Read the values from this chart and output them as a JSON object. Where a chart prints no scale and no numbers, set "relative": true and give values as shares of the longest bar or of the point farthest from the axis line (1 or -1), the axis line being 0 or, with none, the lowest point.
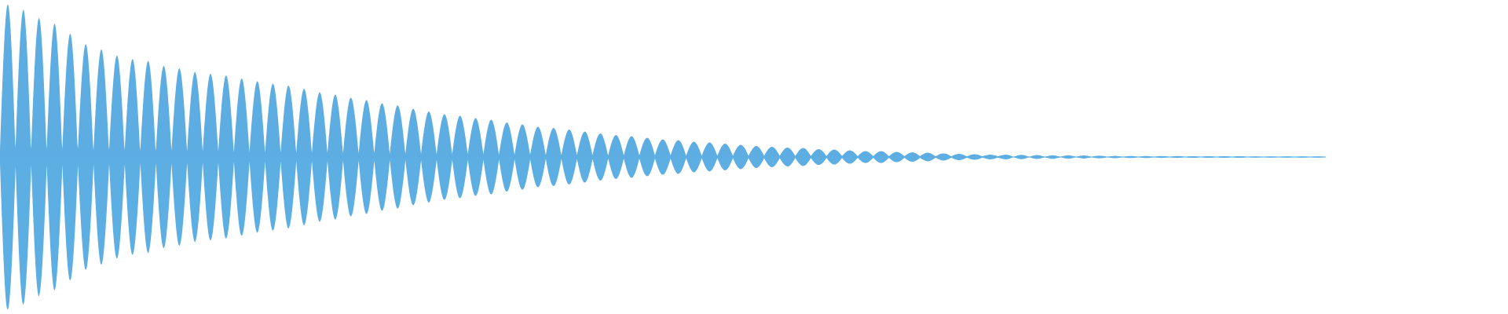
{
  "chart_data": {
    "type": "area",
    "relative": true,
    "categories": [
      null,
      null,
      null,
      null,
      null,
      null,
      null,
      null,
      null,
      null,
      null,
      null,
      null,
      null,
      null,
      null,
      null,
      null,
      null,
      null,
      null,
      null,
      null,
      null,
      null,
      null,
      null,
      null,
      null,
      null,
      null,
      null,
      null,
      null,
      null,
      null,
      null,
      null,
      null,
      null,
      null,
      null,
      null,
      null,
      null,
      null,
      null,
      null,
      null,
      null,
      null,
      null,
      null,
      null,
      null,
      null,
      null,
      null,
      null,
      null,
      null,
      null,
      null,
      null,
      null,
      null,
      null,
      null,
      null,
      null,
      null,
      null,
      null,
      null,
      null,
      null,
      null,
      null,
      null,
      null,
      null,
      null,
      null,
      null,
      null,
      null,
      null,
      null,
      null,
      null,
      null,
      null,
      null,
      null,
      null,
      null,
      null,
      null,
      null,
      null,
      null,
      null,
      null,
      null,
      null,
      null,
      null,
      null,
      null,
      null,
      null,
      null,
      null,
      null,
      null,
      null,
      null,
      null,
      null,
      null,
      null,
      null,
      null,
      null,
      null,
      null,
      null,
      null,
      null,
      null,
      null,
      null,
      null,
      null,
      null,
      null,
      null,
      null,
      null,
      null,
      null,
      null,
      null,
      null,
      null,
      null,
      null,
      null,
      null,
      null,
      null,
      null,
      null,
      null,
      null,
      null,
      null,
      null,
      null,
      null,
      null,
      null,
      null,
      null,
      null,
      null,
      null,
      null,
      null,
      null,
      null
    ],
    "series": [
      {
        "color": "#5dade2",
        "values": [
          0.041,
          1,
          0.062,
          0.966,
          0.052,
          0.912,
          0.052,
          0.874,
          0.052,
          0.809,
          0.052,
          0.74,
          0.046,
          0.706,
          0.046,
          0.665,
          0.046,
          0.642,
          0.041,
          0.631,
          0.041,
          0.598,
          0.041,
          0.582,
          0.036,
          0.557,
          0.036,
          0.546,
          0.036,
          0.534,
          0.031,
          0.515,
          0.031,
          0.497,
          0.028,
          0.482,
          0.028,
          0.469,
          0.026,
          0.448,
          0.026,
          0.425,
          0.026,
          0.41,
          0.023,
          0.389,
          0.023,
          0.374,
          0.023,
          0.353,
          0.021,
          0.338,
          0.021,
          0.317,
          0.021,
          0.299,
          0.018,
          0.281,
          0.018,
          0.271,
          0.018,
          0.255,
          0.018,
          0.245,
          0.015,
          0.227,
          0.015,
          0.214,
          0.015,
          0.198,
          0.013,
          0.191,
          0.013,
          0.18,
          0.013,
          0.168,
          0.013,
          0.155,
          0.01,
          0.144,
          0.01,
          0.137,
          0.01,
          0.126,
          0.01,
          0.116,
          0.01,
          0.111,
          0.008,
          0.101,
          0.008,
          0.095,
          0.008,
          0.088,
          0.008,
          0.08,
          0.008,
          0.072,
          0.008,
          0.067,
          0.008,
          0.062,
          0.006,
          0.059,
          0.006,
          0.052,
          0.006,
          0.049,
          0.006,
          0.044,
          0.005,
          0.039,
          0.005,
          0.039,
          0.005,
          0.034,
          0.005,
          0.031,
          0.005,
          0.028,
          0.004,
          0.023,
          0.004,
          0.021,
          0.004,
          0.018,
          0.004,
          0.015,
          0.004,
          0.015,
          0,
          0.014,
          0,
          0.013,
          0,
          0.012,
          0,
          0.011,
          0,
          0.01,
          0,
          0.009,
          0,
          0.008,
          0,
          0.007,
          0,
          0.007,
          0,
          0.006,
          0,
          0.006,
          0,
          0.005,
          0,
          0.005,
          0,
          0.005,
          0,
          0.005,
          0,
          0.004,
          0,
          0.004,
          0,
          0.004,
          0,
          0.004,
          0,
          0.004,
          0
        ]
      },
      {
        "color": "#5caee3",
        "values": [
          -0.041,
          -1,
          -0.062,
          -0.966,
          -0.052,
          -0.912,
          -0.052,
          -0.874,
          -0.052,
          -0.809,
          -0.052,
          -0.74,
          -0.046,
          -0.706,
          -0.046,
          -0.665,
          -0.046,
          -0.642,
          -0.041,
          -0.631,
          -0.041,
          -0.598,
          -0.041,
          -0.582,
          -0.036,
          -0.557,
          -0.036,
          -0.546,
          -0.036,
          -0.534,
          -0.031,
          -0.515,
          -0.031,
          -0.497,
          -0.028,
          -0.482,
          -0.028,
          -0.469,
          -0.026,
          -0.448,
          -0.026,
          -0.425,
          -0.026,
          -0.41,
          -0.023,
          -0.389,
          -0.023,
          -0.374,
          -0.023,
          -0.353,
          -0.021,
          -0.338,
          -0.021,
          -0.317,
          -0.021,
          -0.299,
          -0.018,
          -0.281,
          -0.018,
          -0.271,
          -0.018,
          -0.255,
          -0.018,
          -0.245,
          -0.015,
          -0.227,
          -0.015,
          -0.214,
          -0.015,
          -0.198,
          -0.013,
          -0.191,
          -0.013,
          -0.18,
          -0.013,
          -0.168,
          -0.013,
          -0.155,
          -0.01,
          -0.144,
          -0.01,
          -0.137,
          -0.01,
          -0.126,
          -0.01,
          -0.116,
          -0.01,
          -0.111,
          -0.008,
          -0.101,
          -0.008,
          -0.095,
          -0.008,
          -0.088,
          -0.008,
          -0.08,
          -0.008,
          -0.072,
          -0.008,
          -0.067,
          -0.008,
          -0.062,
          -0.006,
          -0.059,
          -0.006,
          -0.052,
          -0.006,
          -0.049,
          -0.006,
          -0.044,
          -0.005,
          -0.039,
          -0.005,
          -0.039,
          -0.005,
          -0.034,
          -0.005,
          -0.031,
          -0.005,
          -0.028,
          -0.004,
          -0.023,
          -0.004,
          -0.021,
          -0.004,
          -0.018,
          -0.004,
          -0.015,
          -0.004,
          -0.015,
          0,
          -0.014,
          0,
          -0.013,
          0,
          -0.012,
          0,
          -0.011,
          0,
          -0.01,
          0,
          -0.009,
          0,
          -0.008,
          0,
          -0.007,
          0,
          -0.007,
          0,
          -0.006,
          0,
          -0.006,
          0,
          -0.005,
          0,
          -0.005,
          0,
          -0.005,
          0,
          -0.005,
          0,
          -0.004,
          0,
          -0.004,
          0,
          -0.004,
          0,
          -0.004,
          0,
          -0.004,
          0
        ]
      }
    ]
  }
}
